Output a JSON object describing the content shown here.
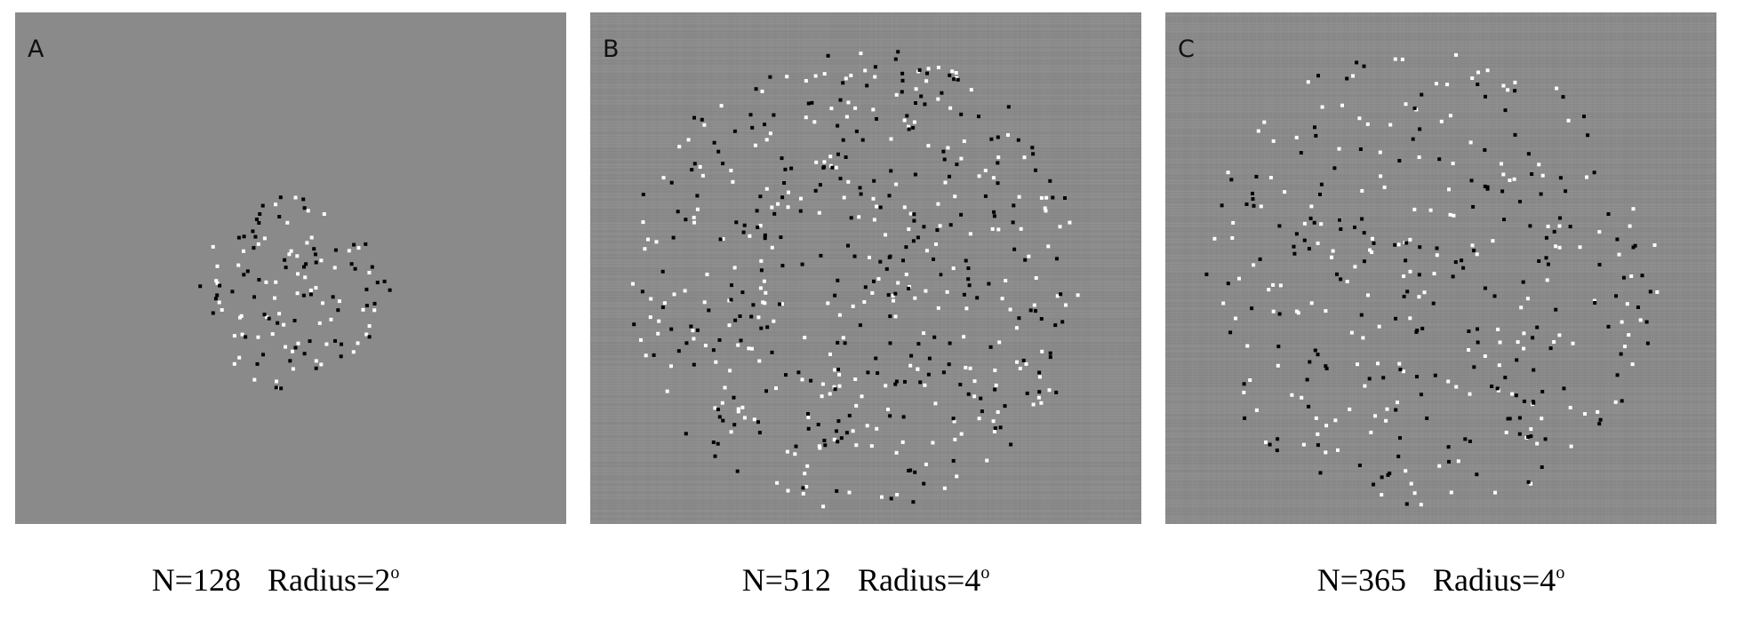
{
  "panels": [
    {
      "letter": "A",
      "n_label": "N=128",
      "radius_label": "Radius=2",
      "degree_symbol": "o",
      "dot_count": 128,
      "radius_deg": 2,
      "noise_background": false
    },
    {
      "letter": "B",
      "n_label": "N=512",
      "radius_label": "Radius=4",
      "degree_symbol": "o",
      "dot_count": 512,
      "radius_deg": 4,
      "noise_background": true
    },
    {
      "letter": "C",
      "n_label": "N=365",
      "radius_label": "Radius=4",
      "degree_symbol": "o",
      "dot_count": 365,
      "radius_deg": 4,
      "noise_background": true
    }
  ],
  "colors": {
    "background": "#8a8a8a",
    "white_dot": "#ffffff",
    "black_dot": "#000000"
  }
}
